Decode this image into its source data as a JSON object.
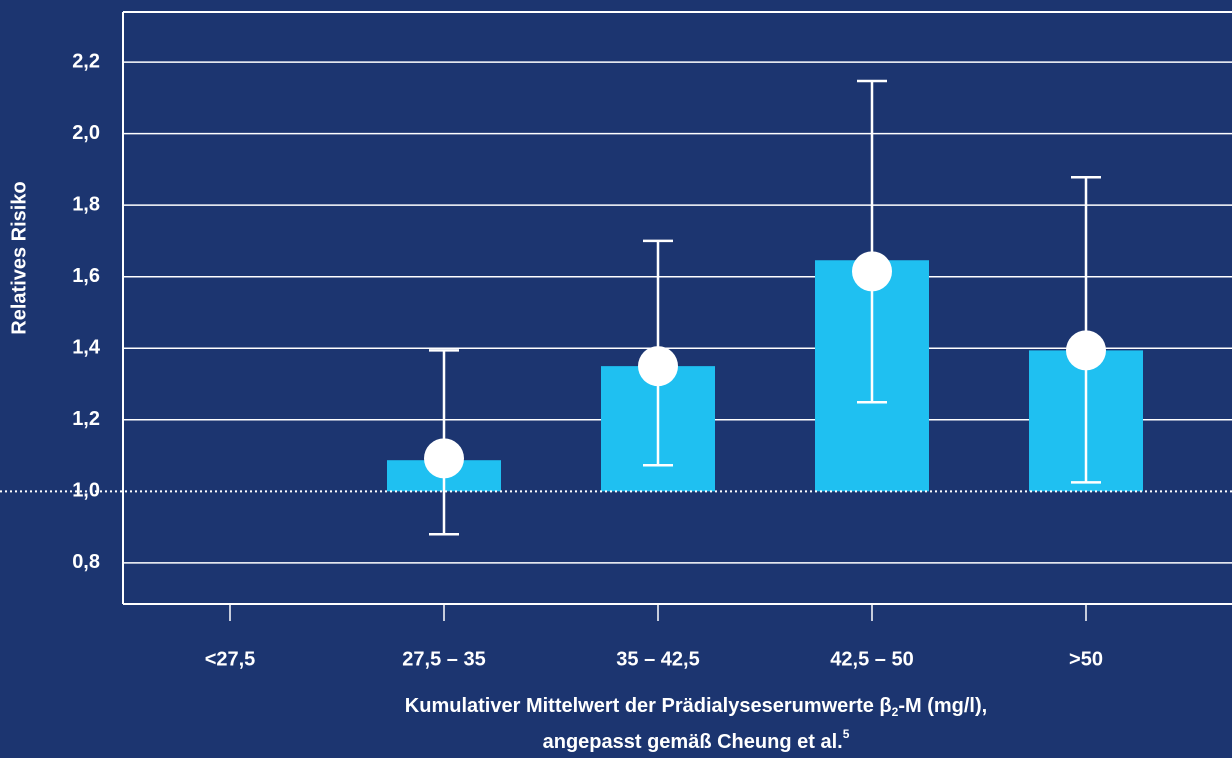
{
  "chart_data": {
    "type": "bar",
    "y_label": "Relatives Risiko",
    "x_label": [
      [
        "Kumulativer Mittelwert der Prädialyseserumwerte β",
        "2",
        "-M (mg/l),"
      ],
      [
        "angepasst gemäß Cheung et al.",
        "5"
      ]
    ],
    "categories": [
      "<27,5",
      "27,5 – 35",
      "35 – 42,5",
      "42,5 – 50",
      ">50"
    ],
    "bar_values": [
      null,
      1.087,
      1.35,
      1.646,
      1.394
    ],
    "point_values": [
      null,
      1.092,
      1.35,
      1.615,
      1.394
    ],
    "error_low": [
      null,
      0.88,
      1.073,
      1.249,
      1.025
    ],
    "error_high": [
      null,
      1.394,
      1.7,
      2.147,
      1.878
    ],
    "baseline": 1.0,
    "bar_color": "#1fc0f1",
    "point_color": "#ffffff",
    "ylim": [
      0.685,
      2.34
    ],
    "yticks": [
      {
        "value": 0.8,
        "label": "0,8"
      },
      {
        "value": 1.0,
        "label": "1,0"
      },
      {
        "value": 1.2,
        "label": "1,2"
      },
      {
        "value": 1.4,
        "label": "1,4"
      },
      {
        "value": 1.6,
        "label": "1,6"
      },
      {
        "value": 1.8,
        "label": "1,8"
      },
      {
        "value": 2.0,
        "label": "2,0"
      },
      {
        "value": 2.2,
        "label": "2,2"
      }
    ],
    "grid": true
  }
}
